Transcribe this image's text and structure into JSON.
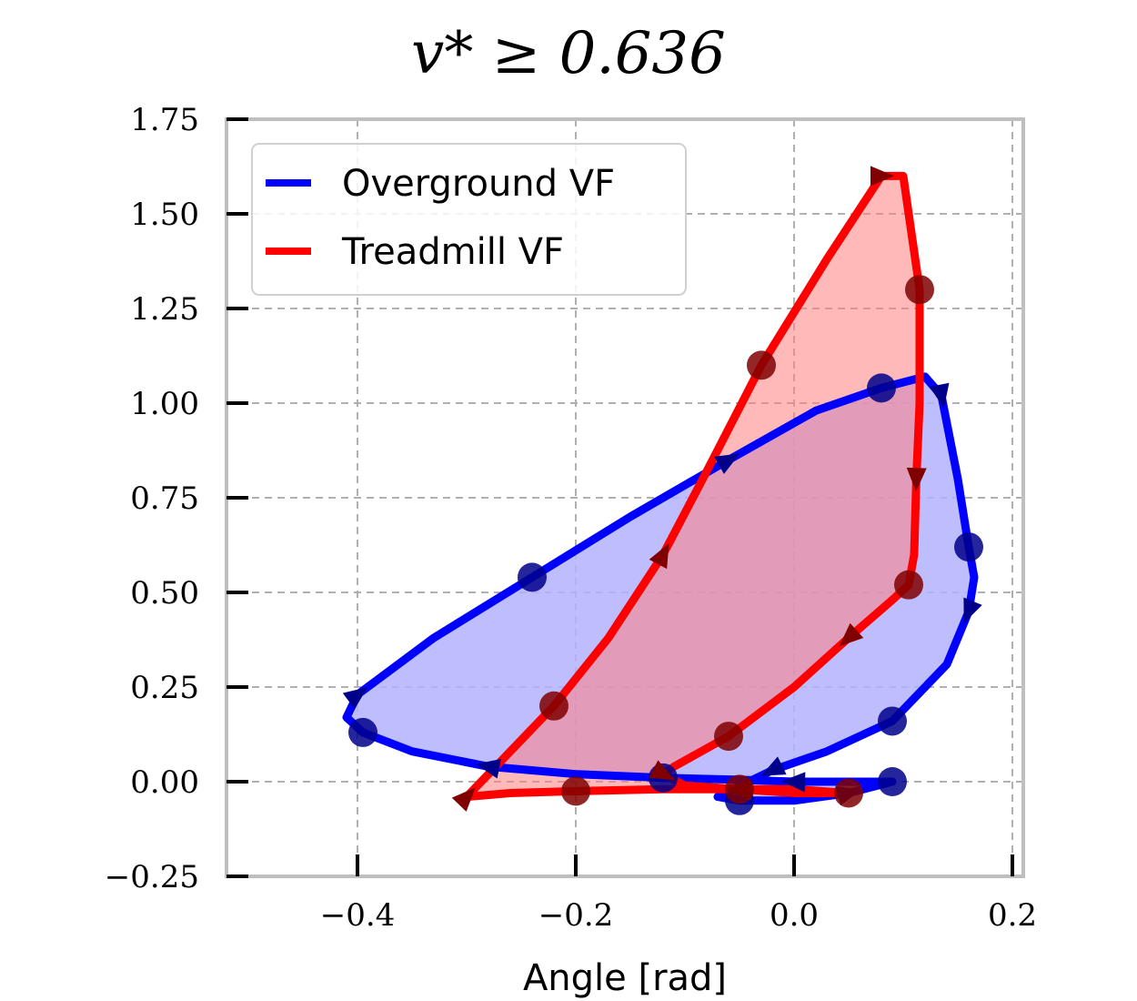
{
  "chart_data": {
    "type": "line",
    "title": "v* ≥ 0.636",
    "xlabel": "Angle [rad]",
    "ylabel": "",
    "xlim": [
      -0.52,
      0.21
    ],
    "ylim": [
      -0.25,
      1.75
    ],
    "xticks": [
      -0.4,
      -0.2,
      0.0,
      0.2
    ],
    "xtick_labels": [
      "−0.4",
      "−0.2",
      "0.0",
      "0.2"
    ],
    "yticks": [
      -0.25,
      0.0,
      0.25,
      0.5,
      0.75,
      1.0,
      1.25,
      1.5,
      1.75
    ],
    "ytick_labels": [
      "−0.25",
      "0.00",
      "0.25",
      "0.50",
      "0.75",
      "1.00",
      "1.25",
      "1.50",
      "1.75"
    ],
    "grid": true,
    "legend_position": "top-left",
    "series": [
      {
        "name": "Overground VF",
        "color": "#0000ff",
        "fill": "#b3b3ff",
        "marker_color": "#00008b",
        "x": [
          0.09,
          0.03,
          0.0,
          -0.05,
          -0.12,
          -0.2,
          -0.28,
          -0.35,
          -0.395,
          -0.41,
          -0.4,
          -0.33,
          -0.24,
          -0.15,
          -0.06,
          0.02,
          0.08,
          0.12,
          0.135,
          0.15,
          0.16,
          0.165,
          0.16,
          0.14,
          0.09,
          0.03,
          -0.02,
          -0.07,
          -0.05,
          0.0,
          0.05,
          0.09
        ],
        "y": [
          0.0,
          0.0,
          0.0,
          0.005,
          0.01,
          0.02,
          0.04,
          0.08,
          0.13,
          0.17,
          0.23,
          0.38,
          0.54,
          0.7,
          0.85,
          0.98,
          1.04,
          1.07,
          1.02,
          0.8,
          0.62,
          0.54,
          0.45,
          0.31,
          0.16,
          0.08,
          0.03,
          -0.04,
          -0.05,
          -0.05,
          -0.03,
          0.0
        ]
      },
      {
        "name": "Treadmill VF",
        "color": "#ff0000",
        "fill": "#ff8080",
        "marker_color": "#800000",
        "x": [
          0.05,
          0.0,
          -0.05,
          -0.12,
          -0.2,
          -0.26,
          -0.3,
          -0.27,
          -0.22,
          -0.17,
          -0.12,
          -0.08,
          -0.03,
          0.03,
          0.08,
          0.1,
          0.115,
          0.115,
          0.112,
          0.11,
          0.105,
          0.09,
          0.05,
          0.0,
          -0.06,
          -0.11,
          -0.12,
          -0.1,
          -0.05,
          0.0,
          0.05
        ],
        "y": [
          -0.03,
          -0.02,
          -0.02,
          -0.02,
          -0.025,
          -0.03,
          -0.04,
          0.05,
          0.2,
          0.38,
          0.6,
          0.82,
          1.1,
          1.38,
          1.6,
          1.6,
          1.3,
          1.0,
          0.8,
          0.6,
          0.52,
          0.48,
          0.38,
          0.25,
          0.12,
          0.04,
          0.02,
          -0.01,
          -0.02,
          -0.03,
          -0.03
        ]
      }
    ]
  }
}
